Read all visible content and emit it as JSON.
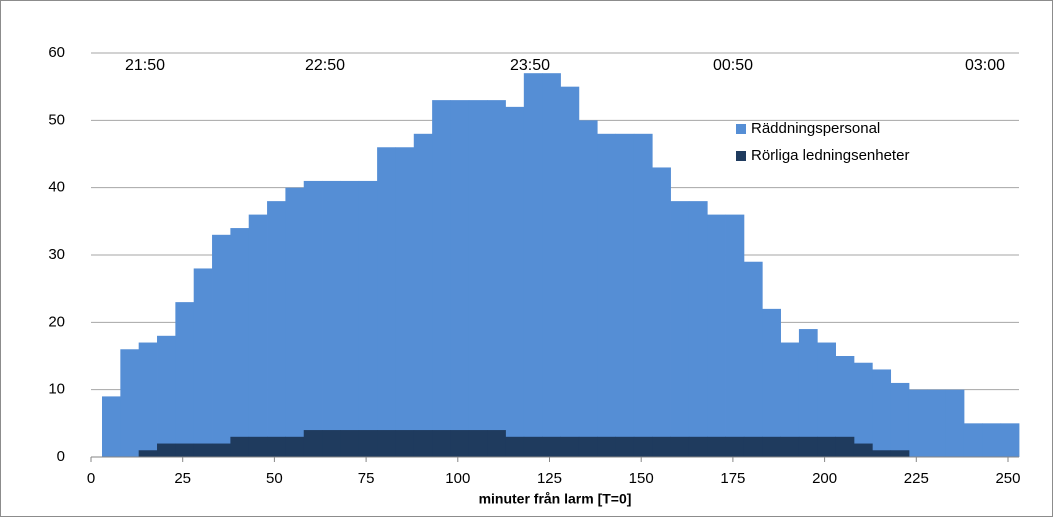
{
  "chart_data": {
    "type": "histogram",
    "xlabel": "minuter från larm [T=0]",
    "annotations": [
      "21:50",
      "22:50",
      "23:50",
      "00:50",
      "03:00"
    ],
    "bins": [
      3,
      8,
      13,
      18,
      23,
      28,
      33,
      38,
      43,
      48,
      53,
      58,
      63,
      68,
      73,
      78,
      83,
      88,
      93,
      98,
      103,
      108,
      113,
      118,
      123,
      128,
      133,
      138,
      143,
      148,
      153,
      158,
      163,
      168,
      173,
      178,
      183,
      188,
      193,
      198,
      203,
      208,
      213,
      218,
      223,
      228,
      233,
      238,
      243,
      248,
      253
    ],
    "series": [
      {
        "name": "Räddningspersonal",
        "color": "#558ed5",
        "values": [
          9,
          16,
          17,
          18,
          23,
          28,
          33,
          34,
          36,
          38,
          40,
          41,
          41,
          41,
          41,
          46,
          46,
          48,
          53,
          53,
          53,
          53,
          52,
          57,
          57,
          55,
          50,
          48,
          48,
          48,
          43,
          38,
          38,
          36,
          36,
          29,
          22,
          17,
          19,
          17,
          15,
          14,
          13,
          11,
          10,
          10,
          10,
          5,
          5,
          5
        ]
      },
      {
        "name": "Rörliga ledningsenheter",
        "color": "#1f3b5e",
        "values": [
          0,
          0,
          1,
          2,
          2,
          2,
          2,
          3,
          3,
          3,
          3,
          4,
          4,
          4,
          4,
          4,
          4,
          4,
          4,
          4,
          4,
          4,
          3,
          3,
          3,
          3,
          3,
          3,
          3,
          3,
          3,
          3,
          3,
          3,
          3,
          3,
          3,
          3,
          3,
          3,
          3,
          2,
          1,
          1,
          0,
          0,
          0,
          0,
          0,
          0
        ]
      }
    ],
    "xlim": [
      0,
      253
    ],
    "xticks": [
      0,
      25,
      50,
      75,
      100,
      125,
      150,
      175,
      200,
      225,
      250
    ],
    "ylim": [
      0,
      60
    ],
    "yticks": [
      0,
      10,
      20,
      30,
      40,
      50,
      60
    ],
    "grid": true,
    "legend": "upper right"
  }
}
